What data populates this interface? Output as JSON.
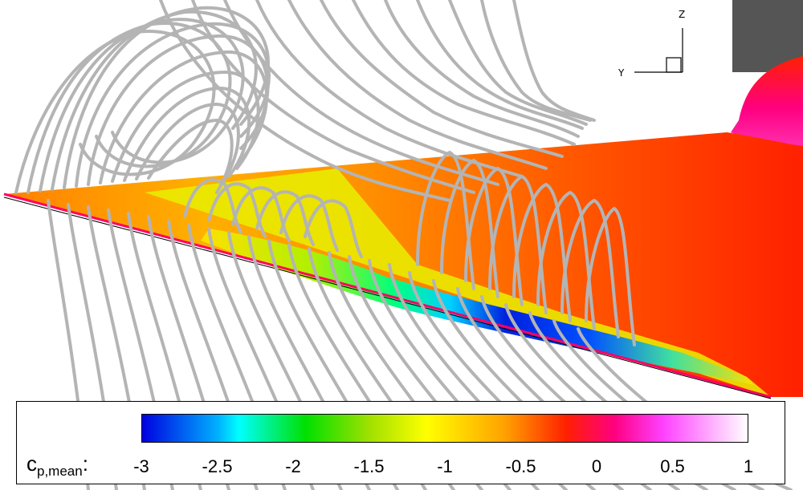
{
  "triad": {
    "z_label": "Z",
    "y_label": "Y"
  },
  "legend": {
    "variable_main": "c",
    "variable_sub": "p,mean",
    "suffix": ":",
    "ticks": [
      "-3",
      "-2.5",
      "-2",
      "-1.5",
      "-1",
      "-0.5",
      "0",
      "0.5",
      "1"
    ],
    "range": [
      -3,
      1
    ]
  },
  "colors": {
    "low": "#0000e0",
    "high": "#ffffff",
    "streamline": "#b4b4b4",
    "body_dark": "#505050"
  }
}
